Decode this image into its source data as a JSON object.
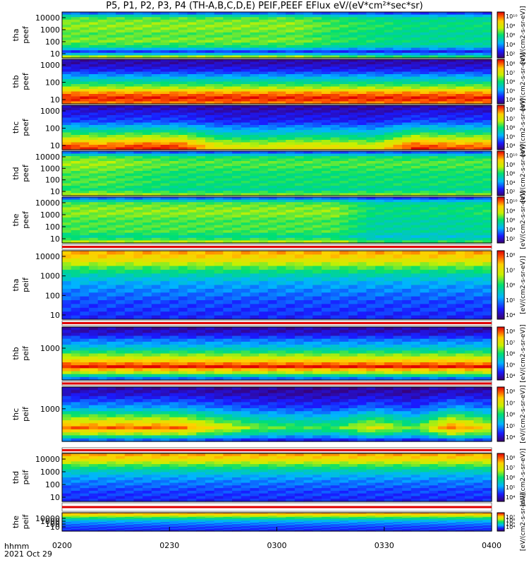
{
  "title": "P5, P1, P2, P3, P4 (TH-A,B,C,D,E) PEIF,PEEF EFlux eV/(eV*cm²*sec*sr)",
  "footer": {
    "time_label": "hhmm",
    "date_label": "2021 Oct 29"
  },
  "x_ticks": [
    "0200",
    "0230",
    "0300",
    "0330",
    "0400"
  ],
  "colorbar_unit": "[eV/(cm2-s-sr-eV)]",
  "chart_data": {
    "type": "heatmap",
    "x_range": [
      "0200",
      "0400"
    ],
    "panels": [
      {
        "probe": "tha",
        "product": "peef",
        "y_ticks": [
          "10000",
          "1000",
          "100",
          "10"
        ],
        "cbar_ticks": [
          "10¹⁰",
          "10⁸",
          "10⁶",
          "10⁴",
          "10²"
        ],
        "profile": [
          0.15,
          0.55,
          0.6,
          0.6,
          0.55,
          0.6,
          0.5,
          0.15,
          0.75
        ],
        "level": [
          1,
          1,
          1,
          1,
          1,
          1,
          1,
          0.9,
          0.85,
          0.8,
          0.8,
          0.8
        ]
      },
      {
        "probe": "thb",
        "product": "peef",
        "y_ticks": [
          "1000",
          "100",
          "10"
        ],
        "cbar_ticks": [
          "10⁸",
          "10⁷",
          "10⁶",
          "10⁵",
          "10⁴"
        ],
        "profile": [
          0.05,
          0.08,
          0.15,
          0.3,
          0.45,
          0.6,
          0.85,
          0.98,
          0.85
        ],
        "level": [
          1,
          1,
          1,
          1,
          1,
          1,
          1,
          1,
          1,
          1,
          1,
          1
        ]
      },
      {
        "probe": "thc",
        "product": "peef",
        "y_ticks": [
          "1000",
          "100",
          "10"
        ],
        "cbar_ticks": [
          "10⁸",
          "10⁷",
          "10⁶",
          "10⁵",
          "10⁴"
        ],
        "profile": [
          0.05,
          0.1,
          0.15,
          0.2,
          0.35,
          0.5,
          0.65,
          0.85,
          0.95
        ],
        "level": [
          1.05,
          1,
          1.05,
          1.05,
          0.8,
          0.75,
          0.8,
          0.8,
          0.75,
          1.05,
          1,
          1
        ]
      },
      {
        "probe": "thd",
        "product": "peef",
        "y_ticks": [
          "10000",
          "1000",
          "100",
          "10"
        ],
        "cbar_ticks": [
          "10¹⁰",
          "10⁸",
          "10⁶",
          "10⁴",
          "10²"
        ],
        "profile": [
          0.15,
          0.55,
          0.62,
          0.6,
          0.55,
          0.55,
          0.55,
          0.5,
          0.7
        ],
        "level": [
          1,
          1,
          0.95,
          0.9,
          0.9,
          0.9,
          0.9,
          0.9,
          0.9,
          0.9,
          0.9,
          0.9
        ]
      },
      {
        "probe": "the",
        "product": "peef",
        "y_ticks": [
          "10000",
          "1000",
          "100",
          "10"
        ],
        "cbar_ticks": [
          "10¹⁰",
          "10⁸",
          "10⁶",
          "10⁴",
          "10²"
        ],
        "profile": [
          0.15,
          0.55,
          0.6,
          0.6,
          0.55,
          0.55,
          0.55,
          0.45,
          0.7
        ],
        "level": [
          1,
          1,
          1,
          1,
          1,
          1,
          1,
          1,
          0.8,
          0.8,
          0.8,
          0.85
        ]
      },
      {
        "probe": "tha",
        "product": "peif",
        "y_ticks": [
          "10000",
          "1000",
          "100",
          "10"
        ],
        "cbar_ticks": [
          "10⁸",
          "10⁷",
          "10⁶",
          "10⁵",
          "10⁴"
        ],
        "profile": [
          0.85,
          0.75,
          0.55,
          0.4,
          0.3,
          0.25,
          0.2,
          0.18,
          0.15
        ],
        "level": [
          1,
          1,
          1,
          1,
          1,
          1,
          1,
          1,
          1,
          1,
          1,
          1
        ]
      },
      {
        "probe": "thb",
        "product": "peif",
        "y_ticks": [
          "1000"
        ],
        "cbar_ticks": [
          "10⁸",
          "10⁷",
          "10⁶",
          "10⁵",
          "10⁴"
        ],
        "profile": [
          0.05,
          0.1,
          0.25,
          0.35,
          0.55,
          0.75,
          0.98,
          0.6,
          0.15
        ],
        "level": [
          1,
          1,
          1,
          1,
          1,
          1,
          1,
          1,
          1,
          1,
          1,
          1
        ]
      },
      {
        "probe": "thc",
        "product": "peif",
        "y_ticks": [
          "1000"
        ],
        "cbar_ticks": [
          "10⁸",
          "10⁷",
          "10⁶",
          "10⁵",
          "10⁴"
        ],
        "profile": [
          0.05,
          0.1,
          0.2,
          0.3,
          0.5,
          0.7,
          0.9,
          0.6,
          0.15
        ],
        "level": [
          1,
          1,
          1,
          1,
          0.8,
          0.65,
          0.6,
          0.6,
          0.8,
          0.6,
          1,
          0.8
        ]
      },
      {
        "probe": "thd",
        "product": "peif",
        "y_ticks": [
          "10000",
          "1000",
          "100",
          "10"
        ],
        "cbar_ticks": [
          "10⁸",
          "10⁷",
          "10⁶",
          "10⁵",
          "10⁴"
        ],
        "profile": [
          0.85,
          0.75,
          0.55,
          0.4,
          0.3,
          0.25,
          0.2,
          0.18,
          0.15
        ],
        "level": [
          1,
          1,
          1,
          1,
          1,
          1,
          1,
          1,
          1,
          1,
          1,
          1
        ]
      },
      {
        "probe": "the",
        "product": "peif",
        "y_ticks": [
          "10000",
          "1000",
          "100",
          "10"
        ],
        "cbar_ticks": [
          "10⁷",
          "10⁶",
          "10⁵",
          "10⁴"
        ],
        "profile": [
          0.85,
          0.75,
          0.55,
          0.4,
          0.3,
          0.25,
          0.2,
          0.18,
          0.15
        ],
        "level": [
          1,
          1,
          1,
          1,
          1,
          1,
          1,
          1,
          1,
          1,
          1,
          1
        ]
      }
    ]
  }
}
